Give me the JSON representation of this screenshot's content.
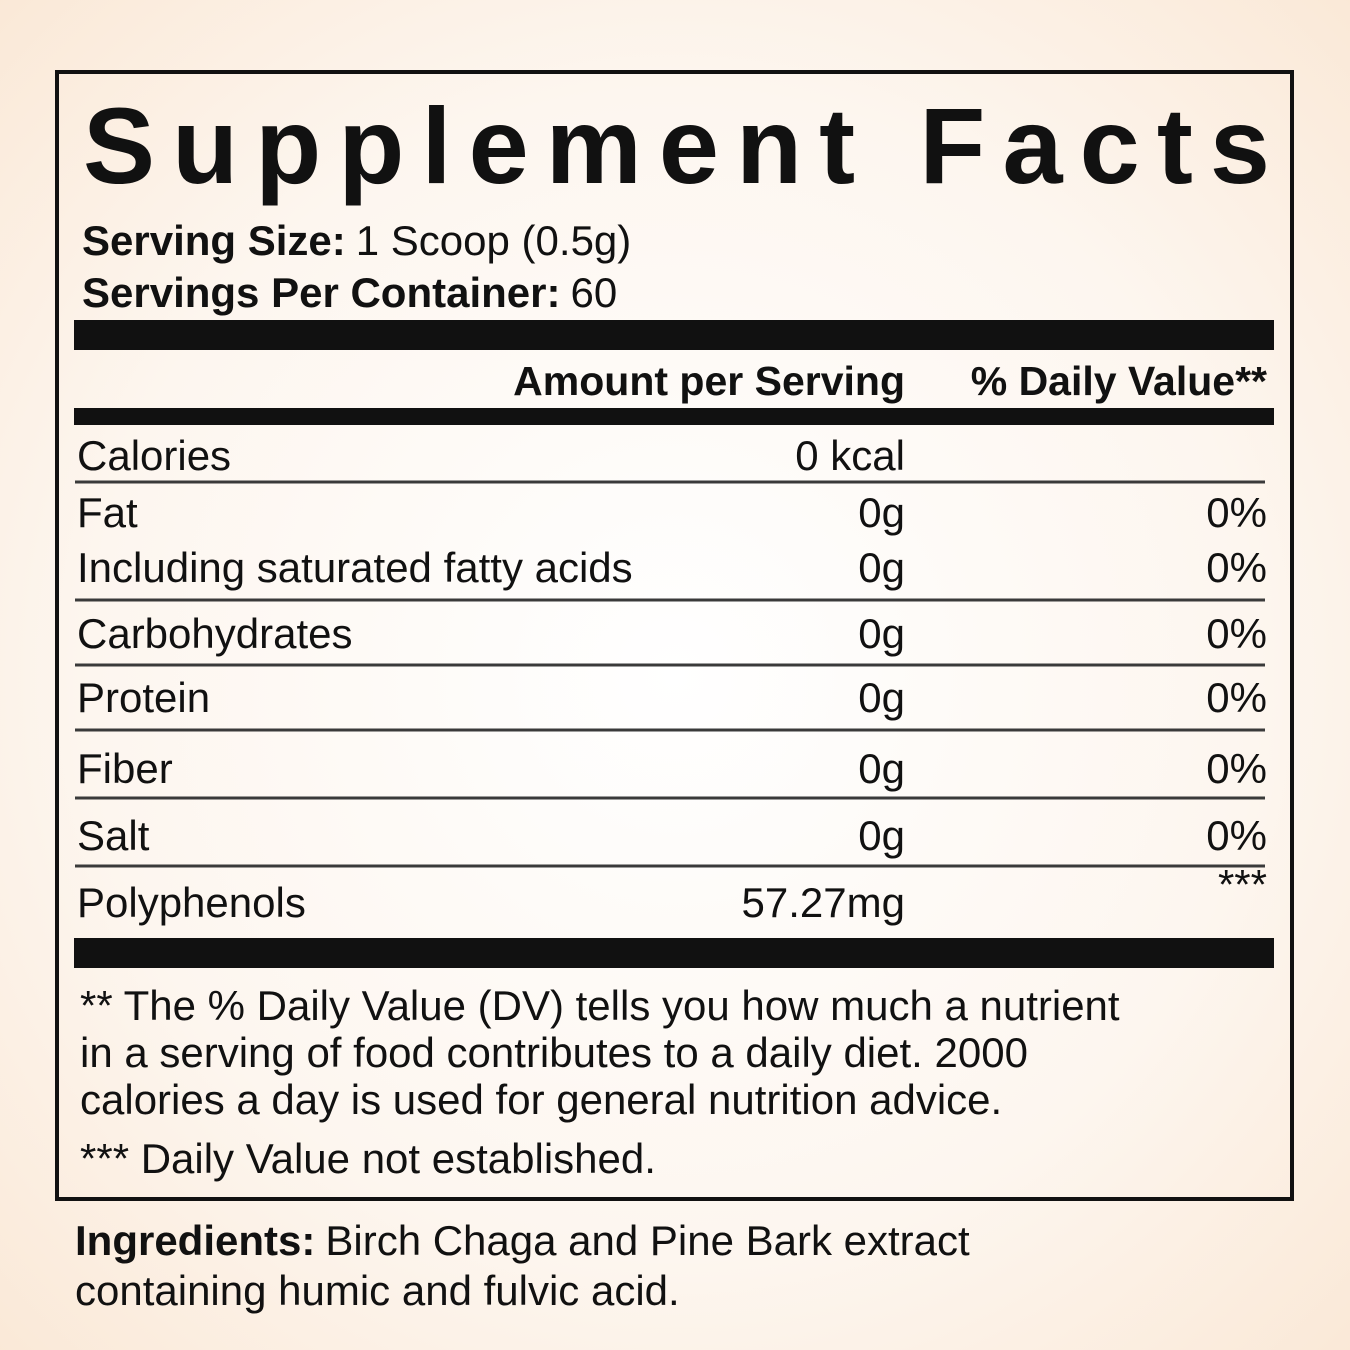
{
  "title": "Supplement Facts",
  "serving_size": {
    "label": "Serving Size:",
    "value": "1 Scoop (0.5g)"
  },
  "servings_per_container": {
    "label": "Servings Per Container:",
    "value": "60"
  },
  "table": {
    "header": [
      "Amount per Serving",
      "% Daily Value**"
    ],
    "rows": [
      [
        "Calories",
        "0 kcal"
      ],
      [
        "Fat",
        "0g",
        "0%"
      ],
      [
        "Including saturated fatty acids",
        "0g",
        "0%"
      ],
      [
        "Carbohydrates",
        "0g",
        "0%"
      ],
      [
        "Protein",
        "0g",
        "0%"
      ],
      [
        "Fiber",
        "0g",
        "0%"
      ],
      [
        "Salt",
        "0g",
        "0%"
      ],
      [
        "Polyphenols",
        "57.27mg",
        "***"
      ]
    ]
  },
  "footnotes": {
    "dv_note": [
      "** The % Daily Value (DV) tells you how much a nutrient",
      "in a serving of food contributes to a daily diet. 2000",
      "calories a day is used for general nutrition advice."
    ],
    "not_established": "*** Daily Value not established."
  },
  "ingredients": {
    "label": "Ingredients:",
    "lines": [
      "Birch Chaga and Pine Bark extract",
      "containing humic and fulvic acid."
    ]
  }
}
